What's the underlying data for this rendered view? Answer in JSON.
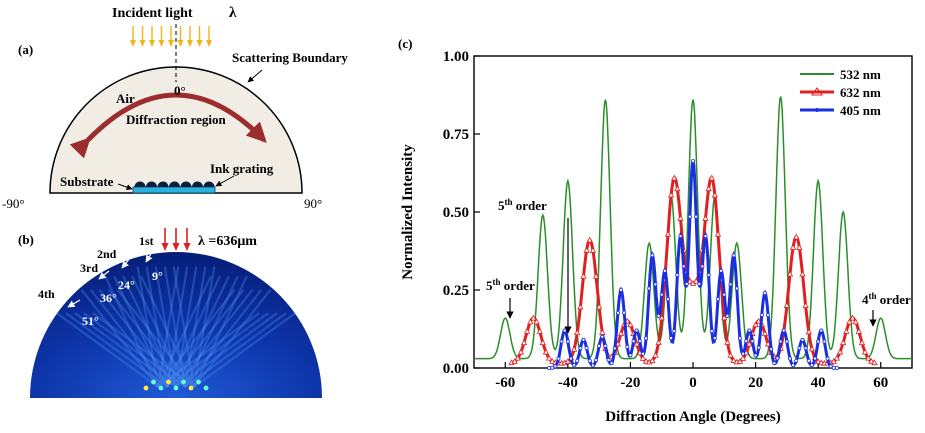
{
  "panel_a": {
    "label": "(a)",
    "incident_label": "Incident light",
    "lambda_symbol": "λ",
    "boundary_label": "Scattering Boundary",
    "air_label": "Air",
    "zero_label": "0°",
    "region_label": "Diffraction region",
    "ink_label": "Ink grating",
    "substrate_label": "Substrate",
    "left_angle": "-90°",
    "right_angle": "90°",
    "colors": {
      "arrow": "#f2b418",
      "fill": "#f1ede4",
      "curve_arrow": "#9b2d2d",
      "grating": "#2ab3e0"
    }
  },
  "panel_b": {
    "label": "(b)",
    "wavelength_label": "λ =636μm",
    "orders": [
      {
        "order": "1st",
        "angle": "9°"
      },
      {
        "order": "2nd",
        "angle": "24°"
      },
      {
        "order": "3rd",
        "angle": "36°"
      },
      {
        "order": "4th",
        "angle": "51°"
      }
    ],
    "colors": {
      "arrow": "#e02020",
      "field": "#0a2fa0"
    }
  },
  "chart_data": {
    "type": "line",
    "panel_label": "(c)",
    "xlabel": "Diffraction Angle (Degrees)",
    "ylabel": "Normalized Intensity",
    "xlim": [
      -70,
      70
    ],
    "ylim": [
      0,
      1.0
    ],
    "x_ticks": [
      -60,
      -40,
      -20,
      0,
      20,
      40,
      60
    ],
    "y_ticks": [
      "0.00",
      "0.25",
      "0.50",
      "0.75",
      "1.00"
    ],
    "grid": false,
    "legend_position": "top-right",
    "annotations": [
      {
        "text": "5th order",
        "sup": "th",
        "order": "5",
        "x": -41,
        "y": 0.1
      },
      {
        "text": "5th order",
        "sup": "th",
        "order": "5",
        "x": -60,
        "y": 0.18
      },
      {
        "text": "4th order",
        "sup": "th",
        "order": "4",
        "x": 51,
        "y": 0.15
      }
    ],
    "series": [
      {
        "name": "532 nm",
        "color": "#2a8f2a",
        "peaks": [
          [
            -60,
            0.16
          ],
          [
            -48,
            0.49
          ],
          [
            -40,
            0.6
          ],
          [
            -28,
            0.86
          ],
          [
            -14,
            0.4
          ],
          [
            -7,
            0.55
          ],
          [
            0,
            0.86
          ],
          [
            7,
            0.55
          ],
          [
            14,
            0.4
          ],
          [
            28,
            0.87
          ],
          [
            40,
            0.6
          ],
          [
            48,
            0.5
          ],
          [
            60,
            0.16
          ]
        ]
      },
      {
        "name": "632 nm",
        "color": "#e02020",
        "peaks": [
          [
            -51,
            0.16
          ],
          [
            -33,
            0.41
          ],
          [
            -21,
            0.15
          ],
          [
            -6,
            0.6
          ],
          [
            0,
            0.22
          ],
          [
            6,
            0.6
          ],
          [
            21,
            0.15
          ],
          [
            33,
            0.42
          ],
          [
            51,
            0.16
          ]
        ]
      },
      {
        "name": "405 nm",
        "color": "#1a2fe0",
        "peaks": [
          [
            -41,
            0.12
          ],
          [
            -35,
            0.09
          ],
          [
            -29,
            0.1
          ],
          [
            -23,
            0.25
          ],
          [
            -18,
            0.12
          ],
          [
            -13,
            0.36
          ],
          [
            -9,
            0.31
          ],
          [
            -4,
            0.42
          ],
          [
            0,
            0.66
          ],
          [
            4,
            0.42
          ],
          [
            9,
            0.31
          ],
          [
            13,
            0.36
          ],
          [
            18,
            0.12
          ],
          [
            23,
            0.24
          ],
          [
            29,
            0.12
          ],
          [
            35,
            0.09
          ],
          [
            41,
            0.12
          ]
        ]
      }
    ]
  }
}
